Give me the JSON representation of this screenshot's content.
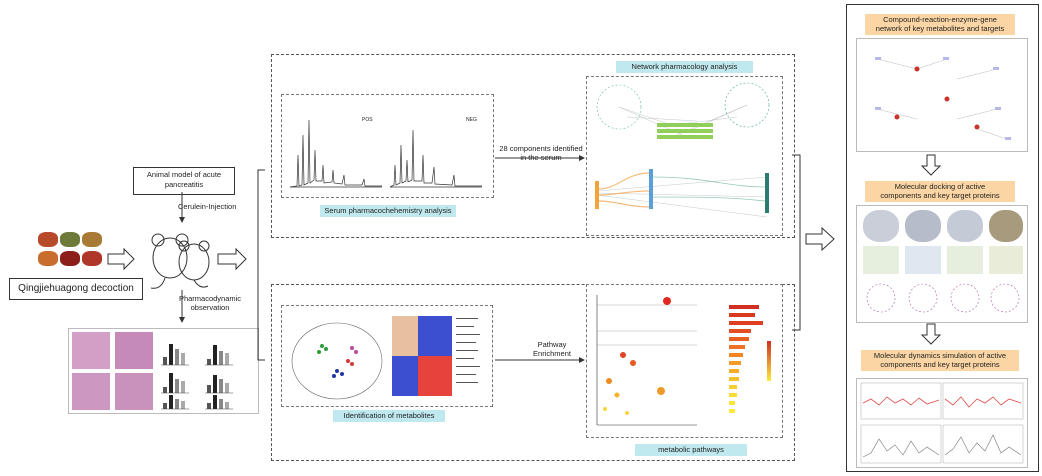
{
  "left": {
    "decoction_label": "Qingjiehuagong decoction",
    "model_label_line1": "Animal model of acute",
    "model_label_line2": "pancreatitis",
    "injection_label": "Cerulein-Injection",
    "pharma_label_line1": "Pharmacodynamic",
    "pharma_label_line2": "observation"
  },
  "top_panel": {
    "serum_title": "Serum pharmacochehemistry analysis",
    "network_title": "Network pharmacology analysis",
    "components_line1": "28 components identified",
    "components_line2": "in the serum",
    "pos_label": "POS",
    "neg_label": "NEG"
  },
  "bottom_panel": {
    "metabolites_title": "Identification of metabolites",
    "pathway_line1": "Pathway",
    "pathway_line2": "Enrichment",
    "pathways_title": "metabolic pathways"
  },
  "right_panel": {
    "compound_line1": "Compound-reaction-enzyme-gene",
    "compound_line2": "network of key metabolites and targets",
    "docking_line1": "Molecular docking of active",
    "docking_line2": "components and key target proteins",
    "dynamics_line1": "Molecular dynamics simulation of active",
    "dynamics_line2": "components and key target proteins"
  },
  "colors": {
    "cyan_label": "#bfe8ef",
    "peach_label": "#fbd6a4",
    "red_heat": "#e8423c",
    "blue_heat": "#3d4fd1"
  }
}
